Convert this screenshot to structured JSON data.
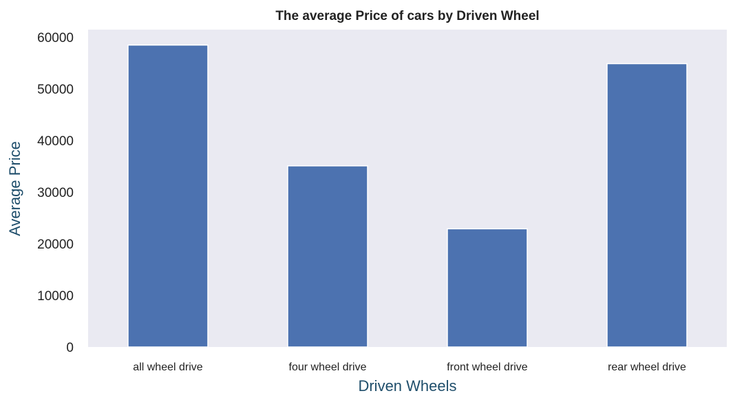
{
  "chart_data": {
    "type": "bar",
    "title": "The average Price of cars by Driven Wheel",
    "xlabel": "Driven Wheels",
    "ylabel": "Average Price",
    "categories": [
      "all wheel drive",
      "four wheel drive",
      "front wheel drive",
      "rear wheel drive"
    ],
    "values": [
      58500,
      35100,
      22900,
      54900
    ],
    "ylim": [
      0,
      61500
    ],
    "yticks": [
      0,
      10000,
      20000,
      30000,
      40000,
      50000,
      60000
    ],
    "grid": false,
    "colors": {
      "bar": "#4c72b0",
      "plot_background": "#eaeaf2",
      "axis_label": "#1f4e6b"
    }
  }
}
